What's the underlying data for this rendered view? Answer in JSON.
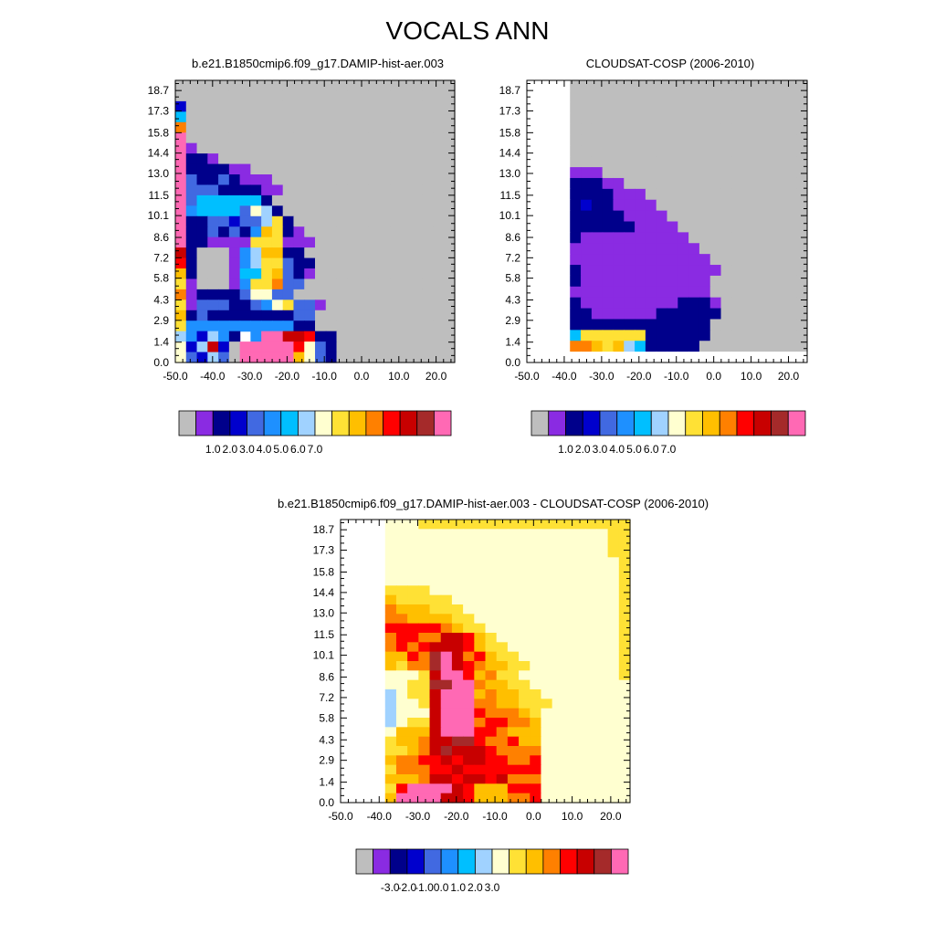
{
  "title": "VOCALS ANN",
  "chart_data": [
    {
      "type": "heatmap",
      "title": "b.e21.B1850cmip6.f09_g17.DAMIP-hist-aer.003",
      "xlabel": "",
      "ylabel": "",
      "x_ticks": [
        "-50.0",
        "-40.0",
        "-30.0",
        "-20.0",
        "-10.0",
        "0.0",
        "10.0",
        "20.0"
      ],
      "y_ticks": [
        "0.0",
        "1.4",
        "2.9",
        "4.3",
        "5.8",
        "7.2",
        "8.6",
        "10.1",
        "11.5",
        "13.0",
        "14.4",
        "15.8",
        "17.3",
        "18.7"
      ],
      "colorbar_labels": [
        "1.0",
        "2.0",
        "3.0",
        "4.0",
        "5.0",
        "6.0",
        "7.0"
      ],
      "colors": [
        "#bebebe",
        "#8a2be2",
        "#00008b",
        "#0000cd",
        "#4169e1",
        "#1e90ff",
        "#00bfff",
        "#a0d2ff",
        "#ffffd0",
        "#ffe135",
        "#ffbf00",
        "#ff8000",
        "#ff0000",
        "#c80000",
        "#a52a2a",
        "#ff69b4"
      ],
      "grid": [
        "..........................",
        "..........................",
        "D.........................",
        "G.........................",
        "L.........................",
        "P.........................",
        "Pa........................",
        "Pbba......................",
        "Pbbbbaa...................",
        "Pdbbdbaaa.................",
        "Pdddbbbbaa................",
        "Pdffffffb.................",
        "Peffffdhgb................",
        "Pbbddcddgib...............",
        "PbbdbdbejJba..............",
        "PbbaaaaiJJaaa.............",
        "Nb...aegKKbb..............",
        "Mb...aegJJdbb.............",
        "Kb...affJKdba.............",
        "Ja...aeJJLdd..............",
        "Labbbbdhhdd..............",
        "JadddbbdehJdda............",
        "Kbdbbbbbbbbdd.............",
        "Jeeeeeeeeeebb.............",
        "Hecgeb ePPNNMbb...........",
        "hcgNc.PPPPPMhdb...........",
        "hdcgd.PPPPPKhdb..........."
      ]
    },
    {
      "type": "heatmap",
      "title": "CLOUDSAT-COSP (2006-2010)",
      "xlabel": "",
      "ylabel": "",
      "x_ticks": [
        "-50.0",
        "-40.0",
        "-30.0",
        "-20.0",
        "-10.0",
        "0.0",
        "10.0",
        "20.0"
      ],
      "y_ticks": [
        "0.0",
        "1.4",
        "2.9",
        "4.3",
        "5.8",
        "7.2",
        "8.6",
        "10.1",
        "11.5",
        "13.0",
        "14.4",
        "15.8",
        "17.3",
        "18.7"
      ],
      "colorbar_labels": [
        "1.0",
        "2.0",
        "3.0",
        "4.0",
        "5.0",
        "6.0",
        "7.0"
      ],
      "colors": [
        "#bebebe",
        "#8a2be2",
        "#00008b",
        "#0000cd",
        "#4169e1",
        "#1e90ff",
        "#00bfff",
        "#a0d2ff",
        "#ffffd0",
        "#ffe135",
        "#ffbf00",
        "#ff8000",
        "#ff0000",
        "#c80000",
        "#a52a2a",
        "#ff69b4"
      ],
      "grid": [
        "WWWW......................",
        "WWWW......................",
        "WWWW......................",
        "WWWW......................",
        "WWWW......................",
        "WWWW......................",
        "WWWW......................",
        "WWWW......................",
        "WWWWaaa...................",
        "WWWWbbbaa.................",
        "WWWWbbbbaaa...............",
        "WWWWbcbbaaaa..............",
        "WWWWbbbbbaaaa.............",
        "WWWWbbbbbbaaaa............",
        "WWWWbaaaaaaaaaa...........",
        "WWWWaaaaaaaaaaaa..........",
        "WWWWaaaaaaaaaaaaa.........",
        "WWWWbaaaaaaaaaaaaa........",
        "WWWWbaaaaaaaaaaaa.........",
        "WWWWaaaaaaaaaaaaa.........",
        "WWWWbaaaaaaaaabbba........",
        "WWWWbbaaaaaabbbbbb........",
        "WWWWbbbbbbbbbbbbb.........",
        "WWWWfiiiiiibbbbbb.........",
        "WWWWkkjijgfbbbbb..........",
        "WWWWWWWWWWWWWWWWWWWWWWWWWW"
      ]
    },
    {
      "type": "heatmap",
      "title": "b.e21.B1850cmip6.f09_g17.DAMIP-hist-aer.003 - CLOUDSAT-COSP (2006-2010)",
      "xlabel": "",
      "ylabel": "",
      "x_ticks": [
        "-50.0",
        "-40.0",
        "-30.0",
        "-20.0",
        "-10.0",
        "0.0",
        "10.0",
        "20.0"
      ],
      "y_ticks": [
        "0.0",
        "1.4",
        "2.9",
        "4.3",
        "5.8",
        "7.2",
        "8.6",
        "10.1",
        "11.5",
        "13.0",
        "14.4",
        "15.8",
        "17.3",
        "18.7"
      ],
      "colorbar_labels": [
        "-3.0",
        "-2.0",
        "-1.0",
        "0.0",
        "1.0",
        "2.0",
        "3.0"
      ],
      "colors": [
        "#bebebe",
        "#8a2be2",
        "#00008b",
        "#0000cd",
        "#4169e1",
        "#1e90ff",
        "#00bfff",
        "#a0d2ff",
        "#ffffd0",
        "#ffe135",
        "#ffbf00",
        "#ff8000",
        "#ff0000",
        "#c80000",
        "#a52a2a",
        "#ff69b4"
      ],
      "grid": [
        "WWWWhhhiiiiiiiiiiiiiiiiiii",
        "WWWWhhhhhhhhhhhhhhhhhhhhii",
        "WWWWhhhhhhhhhhhhhhhhhhhhii",
        "WWWWhhhhhhhhhhhhhhhhhhhhii",
        "WWWWhhhhhhhhhhhhhhhhhhhhhi",
        "WWWWhhhhhhhhhhhhhhhhhhhhhi",
        "WWWWhhhhhhhhhhhhhhhhhhhhhi",
        "WWWWiiiihhhhhhhhhhhhhhhhhi",
        "WWWWjiiiiihhhhhhhhhhhhhhhi",
        "WWWWkjjjiiihhhhhhhhhhhhhhi",
        "WWWWkkjjjjiihhhhhhhhhhhhhi",
        "WWWWlllllkjiihhhhhhhhhhhhi",
        "WWWWkllkkNNljihhhhhhhhhhhi",
        "WWWWklklNNNljiihhhhhhhhhhi",
        "WWWWjjlkOPNkljiihhhhhhhhhi",
        "WWWWjikkOPNlkjjiihhhhhhhhi",
        "WWWWhhhiNPPljkiihhhhhhhhhi",
        "WWWWhhiiOOPPkjjiihhhhhhhhh",
        "WWWWghiiNPPPjkjjiihhhhhhhh",
        "WWWWghhiNPPPkkjjiiihhhhhhh",
        "WWWWghhhNPPPlkkkjihhhhhhhh",
        "WWWWghiiNPPPkllkkjhhhhhhhh",
        "WWWWhjjjNPPPllkjjjhhhhhhhh",
        "WWWWijjkNNOOlkkljjhhhhhhhh",
        "WWWWiijkNONNNMkkkkhhhhhhhh",
        "WWWWjkklMNMNNMlkklhhhhhhhh",
        "WWWWikkkMMNMMMMlllhhhhhhhh",
        "WWWWjjjkNNMNNMNkkkhhhhhhhh",
        "WWWWiMPPPPNMjjjlllhhhhhhhh",
        "WWWWjPPPPNNMjjjkklhhhhhhhh"
      ]
    }
  ]
}
